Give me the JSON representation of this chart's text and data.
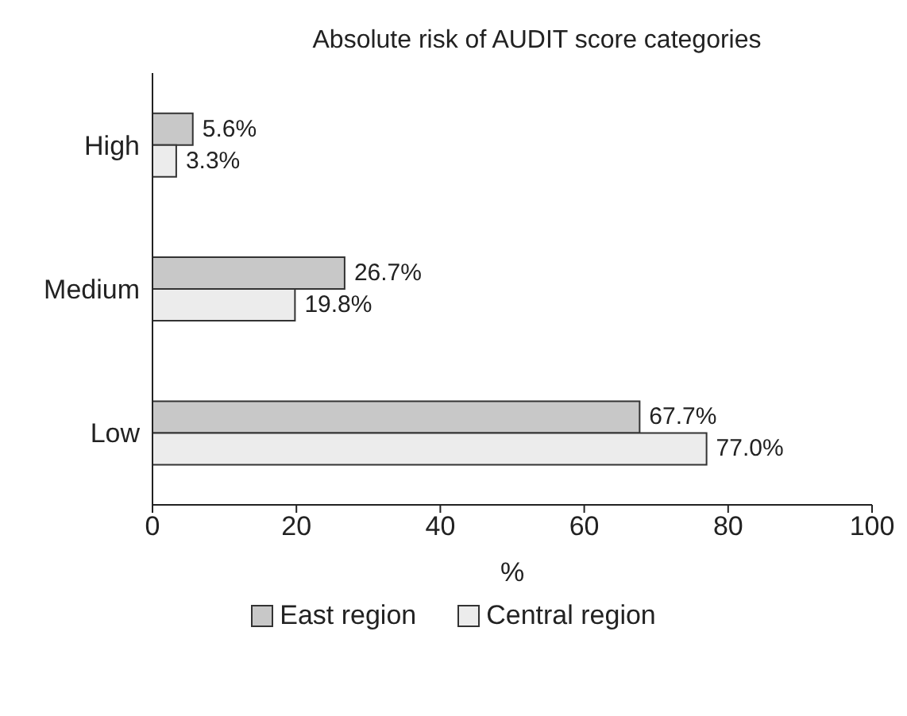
{
  "chart_data": {
    "type": "bar",
    "orientation": "horizontal",
    "title": "Absolute risk of AUDIT score categories",
    "xlabel": "%",
    "categories": [
      "High",
      "Medium",
      "Low"
    ],
    "series": [
      {
        "name": "East region",
        "color": "#c8c8c8",
        "values": [
          5.6,
          26.7,
          67.7
        ],
        "value_labels": [
          "5.6%",
          "26.7%",
          "67.7%"
        ]
      },
      {
        "name": "Central region",
        "color": "#ececec",
        "values": [
          3.3,
          19.8,
          77.0
        ],
        "value_labels": [
          "3.3%",
          "19.8%",
          "77.0%"
        ]
      }
    ],
    "xlim": [
      0,
      100
    ],
    "xticks": [
      0,
      20,
      40,
      60,
      80,
      100
    ],
    "grid": false,
    "legend": "bottom"
  }
}
